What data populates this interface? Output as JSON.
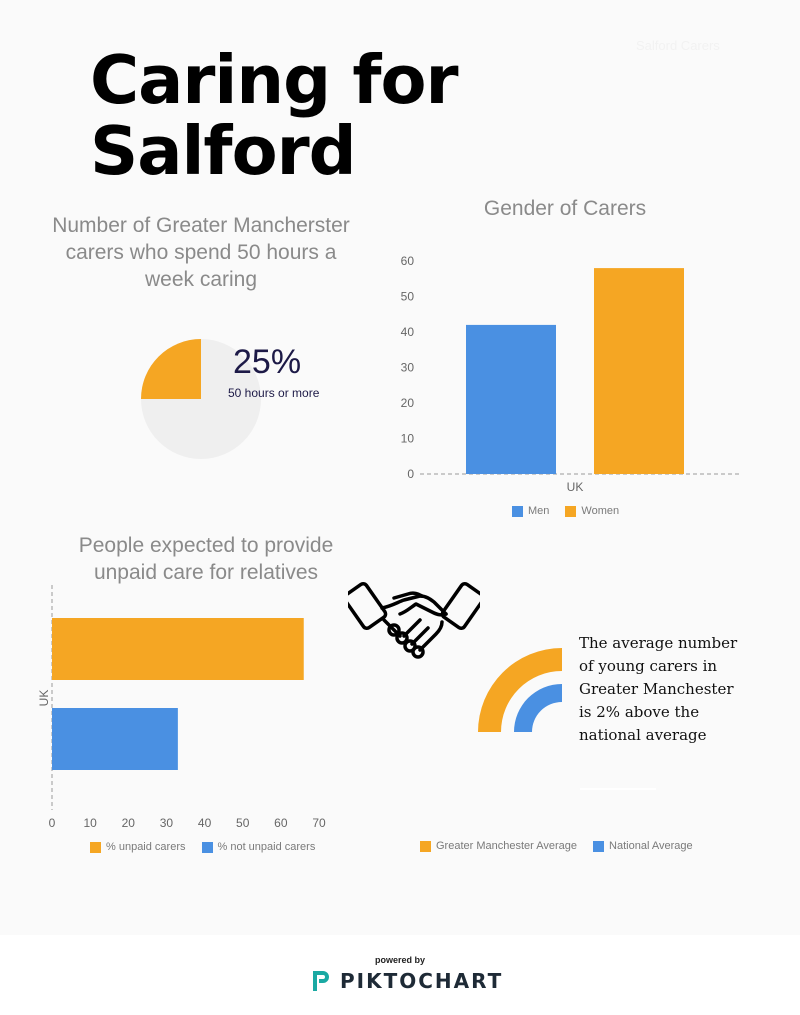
{
  "header": {
    "title_line1": "Caring for",
    "title_line2": "Salford",
    "corner_tag": "Salford Carers"
  },
  "colors": {
    "orange": "#f5a623",
    "blue": "#4a90e2",
    "light_grey": "#efefef",
    "navy": "#1d1a47"
  },
  "pie_section": {
    "title": "Number of Greater Mancherster carers who spend 50 hours a week caring",
    "percent_label": "25%",
    "sub_label": "50 hours or more"
  },
  "gender_section": {
    "title": "Gender of Carers"
  },
  "unpaid_section": {
    "title": "People expected to provide unpaid care for relatives"
  },
  "radial_section": {
    "text": "The average number of young carers in Greater Manchester is 2% above the national average"
  },
  "footer": {
    "powered_by": "powered by",
    "brand": "PIKTOCHART"
  },
  "icons": {
    "handshake": "handshake-icon",
    "logo": "piktochart-logo-icon"
  },
  "chart_data": [
    {
      "type": "pie",
      "slices": [
        {
          "label": "50 hours or more",
          "value": 25,
          "color": "#f5a623"
        },
        {
          "label": "",
          "value": 75,
          "color": "#efefef"
        }
      ]
    },
    {
      "type": "bar",
      "title": "Gender of Carers",
      "categories": [
        "UK"
      ],
      "series": [
        {
          "name": "Men",
          "values": [
            42
          ],
          "color": "#4a90e2"
        },
        {
          "name": "Women",
          "values": [
            58
          ],
          "color": "#f5a623"
        }
      ],
      "ylim": [
        0,
        60
      ],
      "yticks": [
        "0",
        "10",
        "20",
        "30",
        "40",
        "50",
        "60"
      ],
      "legend": "bottom"
    },
    {
      "type": "bar",
      "orientation": "horizontal",
      "title": "People expected to provide unpaid care for relatives",
      "categories": [
        "UK"
      ],
      "series": [
        {
          "name": "% unpaid carers",
          "values": [
            66
          ],
          "color": "#f5a623"
        },
        {
          "name": "% not unpaid carers",
          "values": [
            33
          ],
          "color": "#4a90e2"
        }
      ],
      "xlim": [
        0,
        70
      ],
      "xticks": [
        "0",
        "10",
        "20",
        "30",
        "40",
        "50",
        "60",
        "70"
      ],
      "legend": "bottom"
    },
    {
      "type": "radial-bar",
      "series": [
        {
          "name": "Greater Manchester Average",
          "color": "#f5a623"
        },
        {
          "name": "National Average",
          "color": "#4a90e2"
        }
      ],
      "legend": "bottom"
    }
  ]
}
